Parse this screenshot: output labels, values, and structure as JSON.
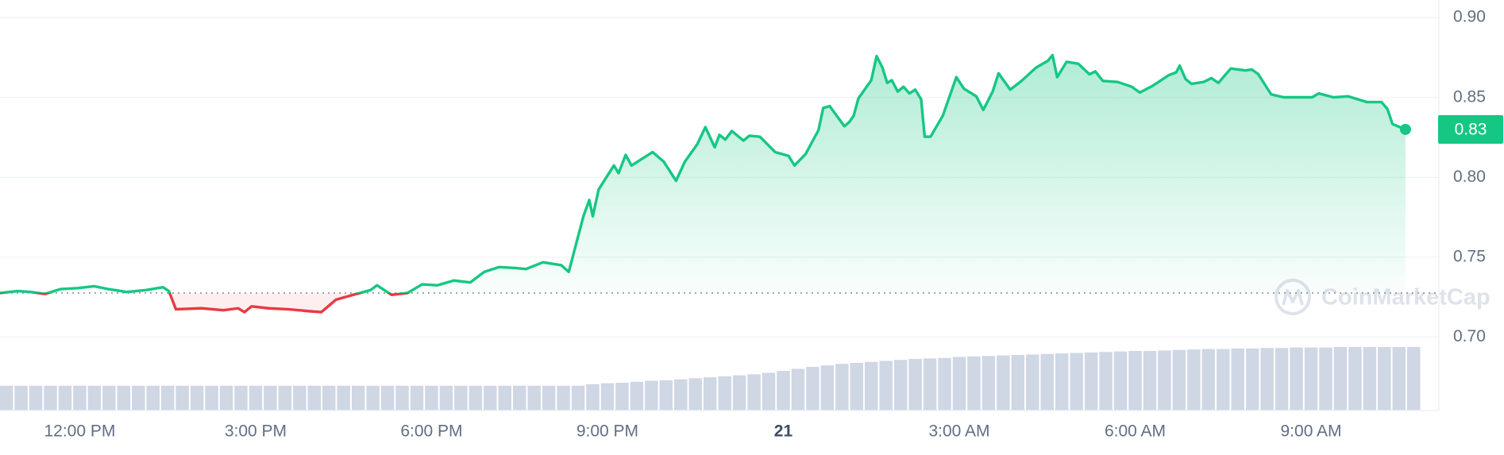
{
  "chart_data": {
    "type": "line",
    "x": [
      -1.36,
      -1.06,
      -0.83,
      -0.59,
      -0.33,
      -0.05,
      0.25,
      0.49,
      0.8,
      1.13,
      1.42,
      1.52,
      1.64,
      2.08,
      2.45,
      2.7,
      2.81,
      2.93,
      3.22,
      3.55,
      3.91,
      4.12,
      4.37,
      4.66,
      4.96,
      5.07,
      5.32,
      5.59,
      5.84,
      6.1,
      6.38,
      6.66,
      6.9,
      7.15,
      7.44,
      7.61,
      7.9,
      8.21,
      8.34,
      8.59,
      8.69,
      8.75,
      8.85,
      9.11,
      9.19,
      9.31,
      9.41,
      9.77,
      9.96,
      10.17,
      10.32,
      10.53,
      10.67,
      10.83,
      10.91,
      11.01,
      11.12,
      11.32,
      11.42,
      11.6,
      11.86,
      12.09,
      12.19,
      12.38,
      12.6,
      12.68,
      12.79,
      13.04,
      13.12,
      13.2,
      13.28,
      13.5,
      13.59,
      13.69,
      13.77,
      13.85,
      13.95,
      14.05,
      14.15,
      14.25,
      14.35,
      14.41,
      14.51,
      14.72,
      14.84,
      14.95,
      15.08,
      15.29,
      15.41,
      15.57,
      15.67,
      15.87,
      16.06,
      16.31,
      16.51,
      16.59,
      16.67,
      16.83,
      17.03,
      17.22,
      17.32,
      17.45,
      17.7,
      17.94,
      18.08,
      18.3,
      18.57,
      18.7,
      18.76,
      18.86,
      18.96,
      19.17,
      19.3,
      19.42,
      19.63,
      19.88,
      19.99,
      20.1,
      20.32,
      20.53,
      20.76,
      21.02,
      21.13,
      21.38,
      21.63,
      21.95,
      22.2,
      22.3,
      22.39,
      22.61
    ],
    "values": [
      0.7276,
      0.7288,
      0.7282,
      0.727,
      0.73,
      0.7306,
      0.7318,
      0.73,
      0.7282,
      0.7294,
      0.7312,
      0.7288,
      0.7174,
      0.718,
      0.7168,
      0.718,
      0.7156,
      0.7192,
      0.718,
      0.7174,
      0.7162,
      0.7156,
      0.7234,
      0.7264,
      0.7294,
      0.7324,
      0.7264,
      0.7276,
      0.733,
      0.7324,
      0.7354,
      0.7342,
      0.7408,
      0.7438,
      0.7432,
      0.7426,
      0.7468,
      0.745,
      0.7408,
      0.7756,
      0.7858,
      0.7756,
      0.7924,
      0.8074,
      0.8026,
      0.814,
      0.8074,
      0.8158,
      0.8098,
      0.7978,
      0.8098,
      0.8206,
      0.8314,
      0.8188,
      0.8266,
      0.8236,
      0.829,
      0.823,
      0.826,
      0.8254,
      0.8158,
      0.8134,
      0.8074,
      0.8146,
      0.8296,
      0.8434,
      0.8446,
      0.832,
      0.8344,
      0.8386,
      0.8494,
      0.8608,
      0.8759,
      0.8687,
      0.8591,
      0.8608,
      0.8537,
      0.8567,
      0.8525,
      0.8549,
      0.8488,
      0.8254,
      0.8254,
      0.8386,
      0.8512,
      0.8627,
      0.8555,
      0.8507,
      0.8422,
      0.8537,
      0.8651,
      0.8549,
      0.8603,
      0.8687,
      0.8729,
      0.8765,
      0.8627,
      0.8723,
      0.8711,
      0.8645,
      0.8663,
      0.8603,
      0.8597,
      0.8567,
      0.8531,
      0.8573,
      0.8639,
      0.8657,
      0.8699,
      0.8615,
      0.8585,
      0.8597,
      0.8621,
      0.8591,
      0.8681,
      0.8669,
      0.8675,
      0.8645,
      0.8519,
      0.8501,
      0.8501,
      0.8501,
      0.8525,
      0.8501,
      0.8507,
      0.8471,
      0.8471,
      0.8429,
      0.8333,
      0.83
    ],
    "xlim": [
      -1.36,
      23.18
    ],
    "ylim": [
      0.654,
      0.911
    ],
    "xticks": [
      {
        "value": 0,
        "label": "12:00 PM"
      },
      {
        "value": 3,
        "label": "3:00 PM"
      },
      {
        "value": 6,
        "label": "6:00 PM"
      },
      {
        "value": 9,
        "label": "9:00 PM"
      },
      {
        "value": 12,
        "label": "21"
      },
      {
        "value": 15,
        "label": "3:00 AM"
      },
      {
        "value": 18,
        "label": "6:00 AM"
      },
      {
        "value": 21,
        "label": "9:00 AM"
      }
    ],
    "yticks": [
      {
        "value": 0.7,
        "label": "0.70"
      },
      0.75,
      {
        "value": 0.8,
        "label": "0.80"
      },
      0.85,
      {
        "value": 0.9,
        "label": "0.90"
      }
    ],
    "baseline": 0.7276,
    "up_color": "#16c784",
    "down_color": "#ea3943",
    "grid": true,
    "volume": {
      "color": "#cfd6e4",
      "x": [
        -1.25,
        -1,
        -0.75,
        -0.5,
        -0.25,
        0,
        0.25,
        0.5,
        0.75,
        1,
        1.25,
        1.5,
        1.75,
        2,
        2.25,
        2.5,
        2.75,
        3,
        3.25,
        3.5,
        3.75,
        4,
        4.25,
        4.5,
        4.75,
        5,
        5.25,
        5.5,
        5.75,
        6,
        6.25,
        6.5,
        6.75,
        7,
        7.25,
        7.5,
        7.75,
        8,
        8.25,
        8.5,
        8.75,
        9,
        9.25,
        9.5,
        9.75,
        10,
        10.25,
        10.5,
        10.75,
        11,
        11.25,
        11.5,
        11.75,
        12,
        12.25,
        12.5,
        12.75,
        13,
        13.25,
        13.5,
        13.75,
        14,
        14.25,
        14.5,
        14.75,
        15,
        15.25,
        15.5,
        15.75,
        16,
        16.25,
        16.5,
        16.75,
        17,
        17.25,
        17.5,
        17.75,
        18,
        18.25,
        18.5,
        18.75,
        19,
        19.25,
        19.5,
        19.75,
        20,
        20.25,
        20.5,
        20.75,
        21,
        21.25,
        21.5,
        21.75,
        22,
        22.25,
        22.5,
        22.75
      ],
      "values": [
        25,
        25,
        25,
        25,
        25,
        25,
        25,
        25,
        25,
        25,
        25,
        25,
        25,
        25,
        25,
        25,
        25,
        25,
        25,
        25,
        25,
        25,
        25,
        25,
        25,
        25,
        25,
        25,
        25,
        25,
        25,
        25,
        25,
        25,
        25,
        25,
        25,
        25,
        25,
        25,
        26.5,
        27.5,
        28,
        29,
        30,
        30.5,
        31.5,
        32.5,
        33.5,
        34.5,
        35.5,
        36.5,
        38,
        40,
        42,
        44,
        45.5,
        47,
        48,
        49,
        50,
        51,
        52,
        52.5,
        53,
        54,
        54.5,
        55,
        55.5,
        56,
        56.5,
        57,
        57.5,
        58,
        58.5,
        59,
        59.5,
        60,
        60,
        60.5,
        61,
        61.5,
        62,
        62,
        62.5,
        62.5,
        63,
        63,
        63.5,
        63.5,
        63.5,
        64,
        64,
        64,
        64,
        64,
        64
      ]
    },
    "watermark": "CoinMarketCap"
  }
}
